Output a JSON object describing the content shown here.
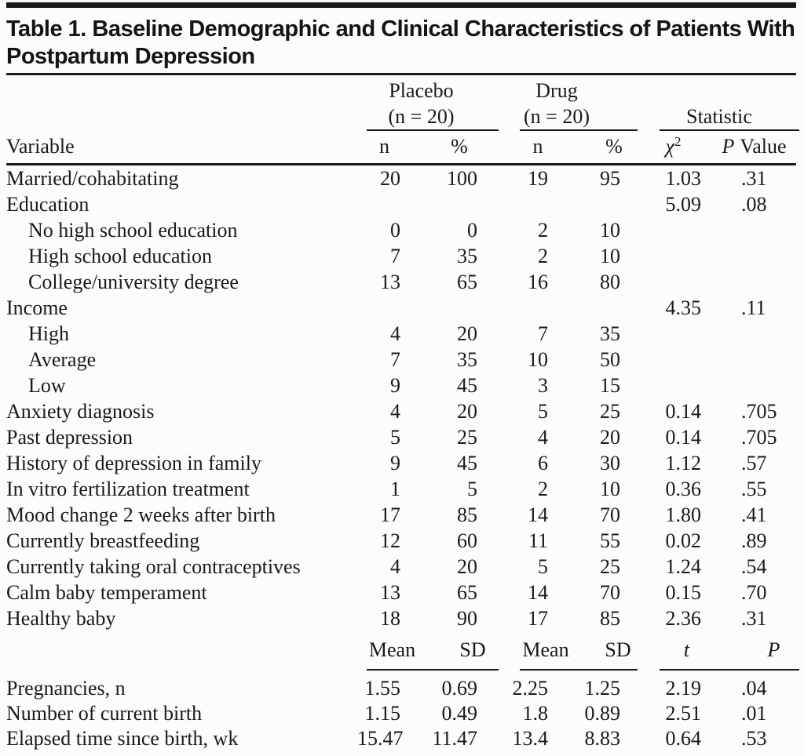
{
  "table": {
    "title": "Table 1. Baseline Demographic and Clinical Characteristics of Patients With Postpartum Depression",
    "header": {
      "variable_label": "Variable",
      "groups": [
        {
          "name": "Placebo",
          "sub": "(n = 20)"
        },
        {
          "name": "Drug",
          "sub": "(n = 20)"
        },
        {
          "name": "Statistic"
        }
      ],
      "col_labels": {
        "placebo_n": "n",
        "placebo_pct": "%",
        "drug_n": "n",
        "drug_pct": "%",
        "chi_base": "χ",
        "chi_sup": "2",
        "p_italic": "P",
        "p_rest": "Value"
      }
    },
    "categorical_rows": [
      {
        "label": "Married/cohabitating",
        "indent": false,
        "cells": [
          "20",
          "100",
          "19",
          "95",
          "1.03",
          ".31"
        ]
      },
      {
        "label": "Education",
        "indent": false,
        "cells": [
          "",
          "",
          "",
          "",
          "5.09",
          ".08"
        ]
      },
      {
        "label": "No high school education",
        "indent": true,
        "cells": [
          "0",
          "0",
          "2",
          "10",
          "",
          ""
        ]
      },
      {
        "label": "High school education",
        "indent": true,
        "cells": [
          "7",
          "35",
          "2",
          "10",
          "",
          ""
        ]
      },
      {
        "label": "College/university degree",
        "indent": true,
        "cells": [
          "13",
          "65",
          "16",
          "80",
          "",
          ""
        ]
      },
      {
        "label": "Income",
        "indent": false,
        "cells": [
          "",
          "",
          "",
          "",
          "4.35",
          ".11"
        ]
      },
      {
        "label": "High",
        "indent": true,
        "cells": [
          "4",
          "20",
          "7",
          "35",
          "",
          ""
        ]
      },
      {
        "label": "Average",
        "indent": true,
        "cells": [
          "7",
          "35",
          "10",
          "50",
          "",
          ""
        ]
      },
      {
        "label": "Low",
        "indent": true,
        "cells": [
          "9",
          "45",
          "3",
          "15",
          "",
          ""
        ]
      },
      {
        "label": "Anxiety diagnosis",
        "indent": false,
        "cells": [
          "4",
          "20",
          "5",
          "25",
          "0.14",
          ".705"
        ]
      },
      {
        "label": "Past depression",
        "indent": false,
        "cells": [
          "5",
          "25",
          "4",
          "20",
          "0.14",
          ".705"
        ]
      },
      {
        "label": "History of depression in family",
        "indent": false,
        "cells": [
          "9",
          "45",
          "6",
          "30",
          "1.12",
          ".57"
        ]
      },
      {
        "label": "In vitro fertilization treatment",
        "indent": false,
        "cells": [
          "1",
          "5",
          "2",
          "10",
          "0.36",
          ".55"
        ]
      },
      {
        "label": "Mood change 2 weeks after birth",
        "indent": false,
        "cells": [
          "17",
          "85",
          "14",
          "70",
          "1.80",
          ".41"
        ]
      },
      {
        "label": "Currently breastfeeding",
        "indent": false,
        "cells": [
          "12",
          "60",
          "11",
          "55",
          "0.02",
          ".89"
        ]
      },
      {
        "label": "Currently taking oral contraceptives",
        "indent": false,
        "cells": [
          "4",
          "20",
          "5",
          "25",
          "1.24",
          ".54"
        ]
      },
      {
        "label": "Calm baby temperament",
        "indent": false,
        "cells": [
          "13",
          "65",
          "14",
          "70",
          "0.15",
          ".70"
        ]
      },
      {
        "label": "Healthy baby",
        "indent": false,
        "cells": [
          "18",
          "90",
          "17",
          "85",
          "2.36",
          ".31"
        ]
      }
    ],
    "continuous_header": {
      "mean1": "Mean",
      "sd1": "SD",
      "mean2": "Mean",
      "sd2": "SD",
      "t": "t",
      "p": "P"
    },
    "continuous_rows": [
      {
        "label": "Pregnancies, n",
        "indent": false,
        "cells": [
          "1.55",
          "0.69",
          "2.25",
          "1.25",
          "2.19",
          ".04"
        ]
      },
      {
        "label": "Number of current birth",
        "indent": false,
        "cells": [
          "1.15",
          "0.49",
          "1.8",
          "0.89",
          "2.51",
          ".01"
        ]
      },
      {
        "label": "Elapsed time since birth, wk",
        "indent": false,
        "cells": [
          "15.47",
          "11.47",
          "13.4",
          "8.83",
          "0.64",
          ".53"
        ]
      }
    ]
  },
  "colors": {
    "background": "#fcfcfa",
    "text": "#1a1a1a",
    "rule": "#1a1a1a"
  }
}
